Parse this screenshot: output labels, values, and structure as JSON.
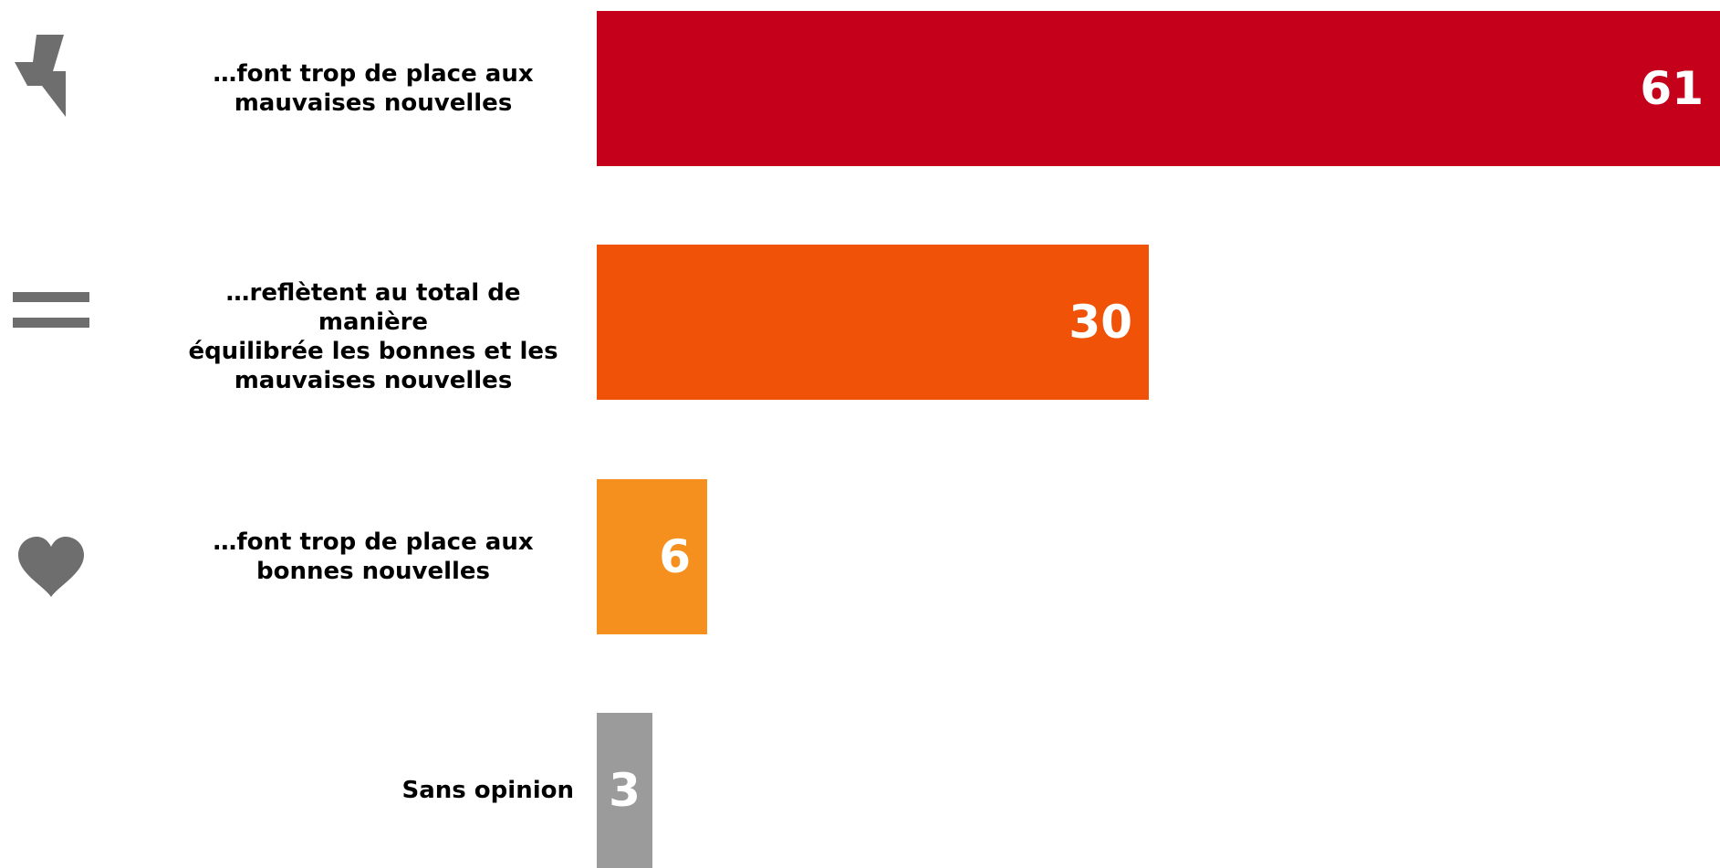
{
  "chart_data": {
    "type": "bar",
    "orientation": "horizontal",
    "categories": [
      "…font trop de place aux\nmauvaises nouvelles",
      "…reflètent au total de manière\néquilibrée les bonnes et les\nmauvaises nouvelles",
      "…font trop de place aux\nbonnes nouvelles",
      "Sans opinion"
    ],
    "values": [
      61,
      30,
      6,
      3
    ],
    "value_labels": [
      "61",
      "30",
      "6",
      "3"
    ],
    "colors": [
      "#c4001a",
      "#f05308",
      "#f5901e",
      "#9b9b9b"
    ],
    "icons": [
      "lightning-icon",
      "equals-icon",
      "heart-icon",
      ""
    ],
    "icon_color": "#6e6e6e",
    "title": "",
    "xlabel": "",
    "ylabel": "",
    "xlim": [
      0,
      61
    ],
    "grid": false,
    "legend": "none"
  }
}
